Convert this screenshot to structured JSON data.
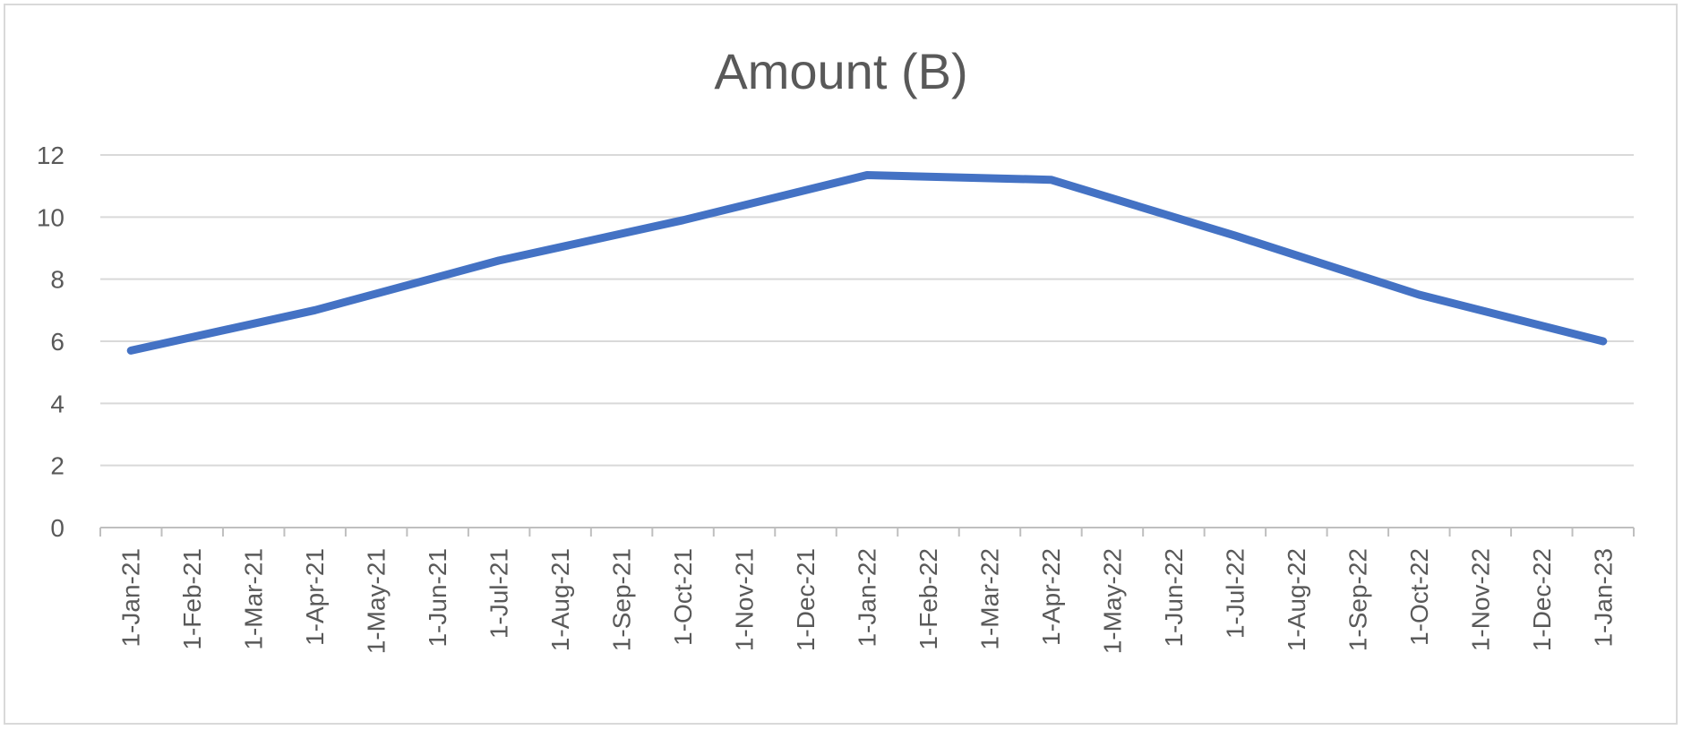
{
  "chart_data": {
    "type": "line",
    "title": "Amount (B)",
    "xlabel": "",
    "ylabel": "",
    "ylim": [
      0,
      12
    ],
    "yticks": [
      0,
      2,
      4,
      6,
      8,
      10,
      12
    ],
    "grid": true,
    "legend": "none",
    "x": [
      "1-Jan-21",
      "1-Feb-21",
      "1-Mar-21",
      "1-Apr-21",
      "1-May-21",
      "1-Jun-21",
      "1-Jul-21",
      "1-Aug-21",
      "1-Sep-21",
      "1-Oct-21",
      "1-Nov-21",
      "1-Dec-21",
      "1-Jan-22",
      "1-Feb-22",
      "1-Mar-22",
      "1-Apr-22",
      "1-May-22",
      "1-Jun-22",
      "1-Jul-22",
      "1-Aug-22",
      "1-Sep-22",
      "1-Oct-22",
      "1-Nov-22",
      "1-Dec-22",
      "1-Jan-23"
    ],
    "series": [
      {
        "points": [
          {
            "x": "1-Jan-21",
            "y": 5.7
          },
          {
            "x": "1-Apr-21",
            "y": 7.0
          },
          {
            "x": "1-Jul-21",
            "y": 8.6
          },
          {
            "x": "1-Oct-21",
            "y": 9.9
          },
          {
            "x": "1-Jan-22",
            "y": 11.35
          },
          {
            "x": "1-Apr-22",
            "y": 11.2
          },
          {
            "x": "1-Jul-22",
            "y": 9.4
          },
          {
            "x": "1-Oct-22",
            "y": 7.5
          },
          {
            "x": "1-Jan-23",
            "y": 6.0
          }
        ]
      }
    ],
    "colors": {
      "line": "#4472c4",
      "grid": "#d9d9d9",
      "axis": "#bfbfbf",
      "text": "#595959"
    }
  }
}
